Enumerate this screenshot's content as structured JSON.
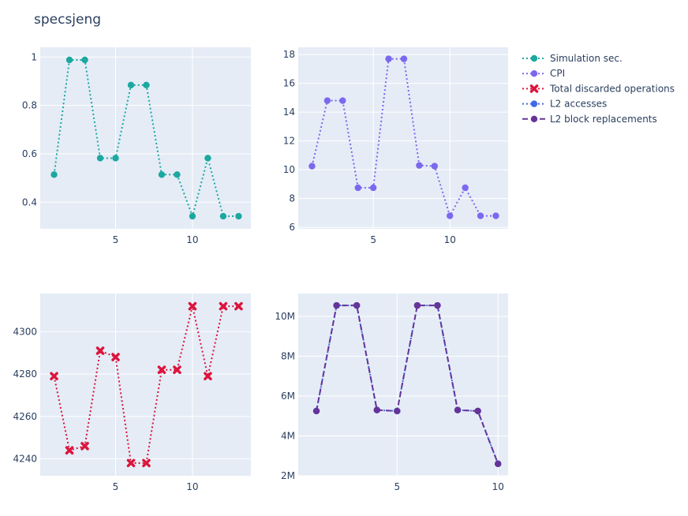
{
  "chart_data": {
    "title": "specsjeng",
    "legend_placement": "top-right",
    "panels": [
      {
        "type": "line",
        "series_name": "Simulation sec.",
        "color": "#1ba8a0",
        "marker": "circle",
        "line_style": "dot",
        "x": [
          1,
          2,
          3,
          4,
          5,
          6,
          7,
          8,
          9,
          10,
          11,
          12,
          13
        ],
        "y": [
          0.514,
          0.988,
          0.988,
          0.582,
          0.582,
          0.884,
          0.884,
          0.514,
          0.514,
          0.342,
          0.582,
          0.342,
          0.342
        ],
        "xlim": [
          0.1,
          13.8
        ],
        "ylim": [
          0.29,
          1.04
        ],
        "x_ticks": [
          5,
          10
        ],
        "x_tick_labels": [
          "5",
          "10"
        ],
        "y_ticks": [
          0.4,
          0.6,
          0.8,
          1
        ],
        "y_tick_labels": [
          "0.4",
          "0.6",
          "0.8",
          "1"
        ]
      },
      {
        "type": "line",
        "series_name": "CPI",
        "color": "#7b68ee",
        "marker": "circle",
        "line_style": "dot",
        "x": [
          1,
          2,
          3,
          4,
          5,
          6,
          7,
          8,
          9,
          10,
          11,
          12,
          13
        ],
        "y": [
          10.25,
          14.8,
          14.8,
          8.75,
          8.75,
          17.7,
          17.7,
          10.3,
          10.25,
          6.8,
          8.75,
          6.8,
          6.8
        ],
        "xlim": [
          0.1,
          13.8
        ],
        "ylim": [
          5.9,
          18.5
        ],
        "x_ticks": [
          5,
          10
        ],
        "x_tick_labels": [
          "5",
          "10"
        ],
        "y_ticks": [
          6,
          8,
          10,
          12,
          14,
          16,
          18
        ],
        "y_tick_labels": [
          "6",
          "8",
          "10",
          "12",
          "14",
          "16",
          "18"
        ]
      },
      {
        "type": "line",
        "series_name": "Total discarded operations",
        "color": "#dc143c",
        "marker": "x",
        "line_style": "dot",
        "x": [
          1,
          2,
          3,
          4,
          5,
          6,
          7,
          8,
          9,
          10,
          11,
          12,
          13
        ],
        "y": [
          4279,
          4244,
          4246,
          4291,
          4288,
          4238,
          4238,
          4282,
          4282,
          4312,
          4279,
          4312,
          4312
        ],
        "xlim": [
          0.1,
          13.8
        ],
        "ylim": [
          4232,
          4318
        ],
        "x_ticks": [
          5,
          10
        ],
        "x_tick_labels": [
          "5",
          "10"
        ],
        "y_ticks": [
          4240,
          4260,
          4280,
          4300
        ],
        "y_tick_labels": [
          "4240",
          "4260",
          "4280",
          "4300"
        ]
      },
      {
        "type": "line",
        "series": [
          {
            "name": "L2 accesses",
            "color": "#4169e1",
            "marker": "circle",
            "line_style": "dot",
            "y": [
              5.25,
              10.55,
              10.55,
              5.3,
              5.25,
              10.55,
              10.55,
              5.3,
              5.25,
              2.6
            ]
          },
          {
            "name": "L2 block replacements",
            "color": "#663399",
            "marker": "circle",
            "line_style": "dash",
            "y": [
              5.25,
              10.55,
              10.55,
              5.3,
              5.25,
              10.55,
              10.55,
              5.3,
              5.25,
              2.6
            ]
          }
        ],
        "x": [
          1,
          2,
          3,
          4,
          5,
          6,
          7,
          8,
          9,
          10
        ],
        "xlim": [
          0.1,
          10.5
        ],
        "ylim": [
          2.0,
          11.15
        ],
        "y_unit": "millions",
        "x_ticks": [
          5,
          10
        ],
        "x_tick_labels": [
          "5",
          "10"
        ],
        "y_ticks": [
          2,
          4,
          6,
          8,
          10
        ],
        "y_tick_labels": [
          "2M",
          "4M",
          "6M",
          "8M",
          "10M"
        ]
      }
    ]
  },
  "legend": [
    {
      "name": "Simulation sec.",
      "color": "#1ba8a0",
      "marker": "circle",
      "line_style": "dot"
    },
    {
      "name": "CPI",
      "color": "#7b68ee",
      "marker": "circle",
      "line_style": "dot"
    },
    {
      "name": "Total discarded operations",
      "color": "#dc143c",
      "marker": "x",
      "line_style": "dot"
    },
    {
      "name": "L2 accesses",
      "color": "#4169e1",
      "marker": "circle",
      "line_style": "dot"
    },
    {
      "name": "L2 block replacements",
      "color": "#663399",
      "marker": "circle",
      "line_style": "dash"
    }
  ],
  "plot_bg_color": "#e5ecf6",
  "grid_color": "#ffffff"
}
